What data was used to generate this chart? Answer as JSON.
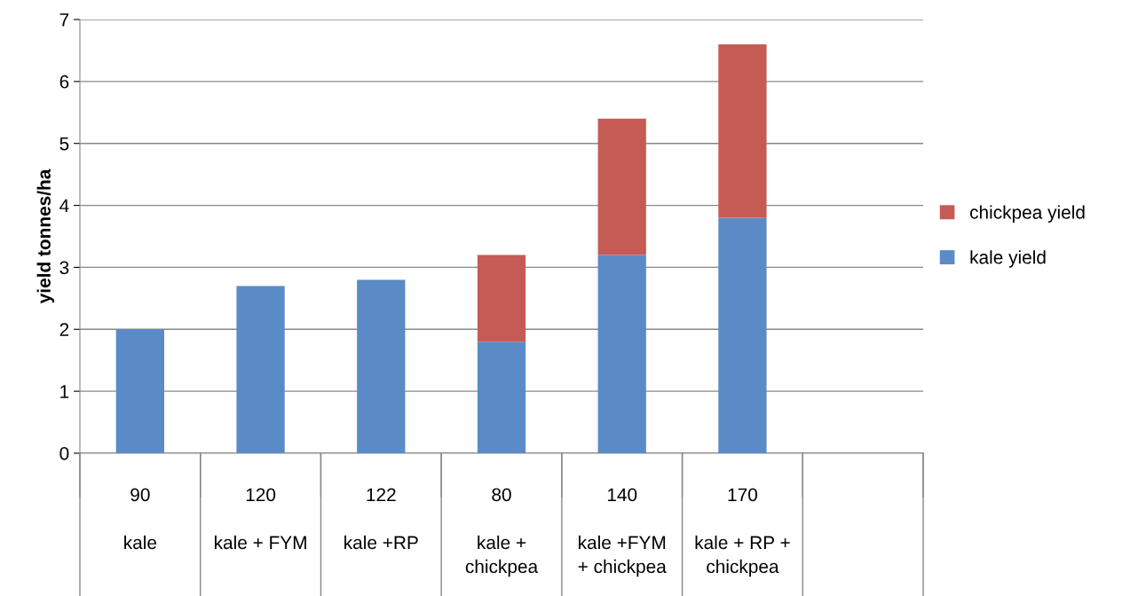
{
  "chart_data": {
    "type": "bar",
    "stacked": true,
    "ylabel": "yield tonnes/ha",
    "categories": [
      "90\n\nkale",
      "120\n\nkale + FYM",
      "122\n\nkale +RP",
      "80\n\nkale +\nchickpea",
      "140\n\nkale +FYM\n+ chickpea",
      "170\n\nkale + RP +\nchickpea",
      null
    ],
    "series": [
      {
        "name": "kale yield",
        "color": "#5b8bc6",
        "values": [
          2.0,
          2.7,
          2.8,
          1.8,
          3.2,
          3.8,
          null
        ]
      },
      {
        "name": "chickpea yield",
        "color": "#c65b55",
        "values": [
          null,
          null,
          null,
          1.4,
          2.2,
          2.8,
          null
        ]
      }
    ],
    "ylim": [
      0,
      7
    ],
    "yticks": [
      0,
      1,
      2,
      3,
      4,
      5,
      6,
      7
    ],
    "grid": "y",
    "legend": "right"
  }
}
